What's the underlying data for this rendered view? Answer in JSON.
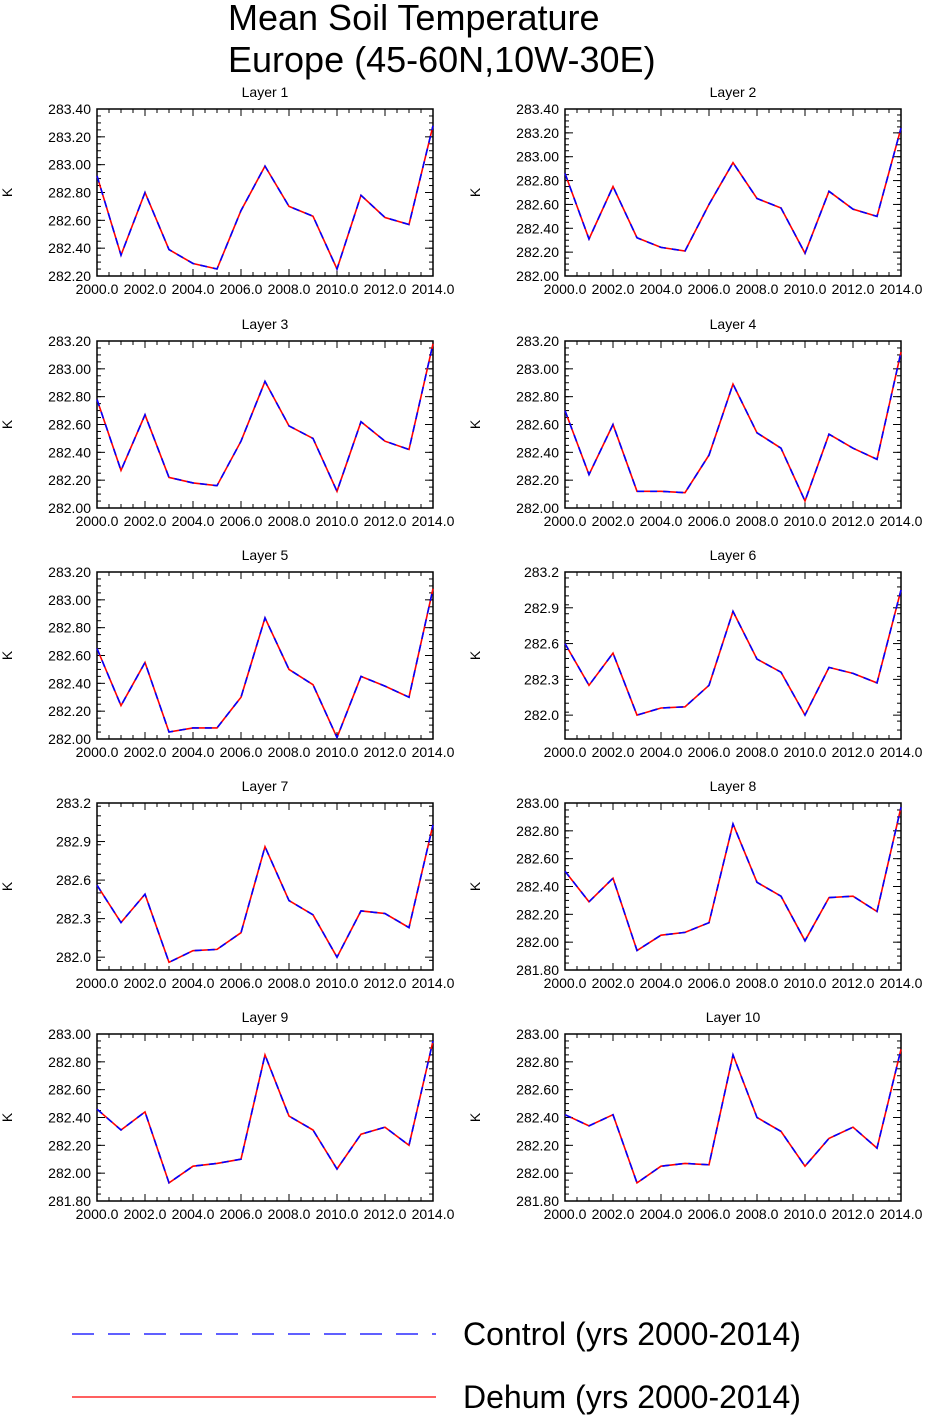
{
  "title_line1": "Mean Soil Temperature",
  "title_line2": "Europe (45-60N,10W-30E)",
  "colors": {
    "control": "#0000ff",
    "dehum": "#ff0000",
    "axis": "#000000"
  },
  "legend": [
    {
      "key": "control",
      "label": "Control (yrs 2000-2014)",
      "style": "dashed"
    },
    {
      "key": "dehum",
      "label": "Dehum (yrs 2000-2014)",
      "style": "solid"
    }
  ],
  "chart_data": [
    {
      "type": "line",
      "title": "Layer 1",
      "ylabel": "K",
      "x": [
        2000,
        2001,
        2002,
        2003,
        2004,
        2005,
        2006,
        2007,
        2008,
        2009,
        2010,
        2011,
        2012,
        2013,
        2014
      ],
      "xticks": [
        "2000.0",
        "2002.0",
        "2004.0",
        "2006.0",
        "2008.0",
        "2010.0",
        "2012.0",
        "2014.0"
      ],
      "xlim": [
        2000,
        2014
      ],
      "ylim": [
        282.2,
        283.4
      ],
      "yticks": [
        "282.20",
        "282.40",
        "282.60",
        "282.80",
        "283.00",
        "283.20",
        "283.40"
      ],
      "series": [
        {
          "name": "Control (yrs 2000-2014)",
          "values": [
            282.92,
            282.35,
            282.8,
            282.39,
            282.29,
            282.25,
            282.67,
            282.99,
            282.7,
            282.63,
            282.25,
            282.78,
            282.62,
            282.57,
            283.28
          ]
        },
        {
          "name": "Dehum (yrs 2000-2014)",
          "values": [
            282.92,
            282.35,
            282.8,
            282.39,
            282.29,
            282.25,
            282.67,
            282.99,
            282.7,
            282.63,
            282.25,
            282.78,
            282.62,
            282.57,
            283.28
          ]
        }
      ]
    },
    {
      "type": "line",
      "title": "Layer 2",
      "ylabel": "K",
      "x": [
        2000,
        2001,
        2002,
        2003,
        2004,
        2005,
        2006,
        2007,
        2008,
        2009,
        2010,
        2011,
        2012,
        2013,
        2014
      ],
      "xticks": [
        "2000.0",
        "2002.0",
        "2004.0",
        "2006.0",
        "2008.0",
        "2010.0",
        "2012.0",
        "2014.0"
      ],
      "xlim": [
        2000,
        2014
      ],
      "ylim": [
        282.0,
        283.4
      ],
      "yticks": [
        "282.00",
        "282.20",
        "282.40",
        "282.60",
        "282.80",
        "283.00",
        "283.20",
        "283.40"
      ],
      "series": [
        {
          "name": "Control (yrs 2000-2014)",
          "values": [
            282.86,
            282.31,
            282.75,
            282.32,
            282.24,
            282.21,
            282.6,
            282.95,
            282.65,
            282.57,
            282.19,
            282.71,
            282.56,
            282.5,
            283.24
          ]
        },
        {
          "name": "Dehum (yrs 2000-2014)",
          "values": [
            282.86,
            282.31,
            282.75,
            282.32,
            282.24,
            282.21,
            282.6,
            282.95,
            282.65,
            282.57,
            282.19,
            282.71,
            282.56,
            282.5,
            283.24
          ]
        }
      ]
    },
    {
      "type": "line",
      "title": "Layer 3",
      "ylabel": "K",
      "x": [
        2000,
        2001,
        2002,
        2003,
        2004,
        2005,
        2006,
        2007,
        2008,
        2009,
        2010,
        2011,
        2012,
        2013,
        2014
      ],
      "xticks": [
        "2000.0",
        "2002.0",
        "2004.0",
        "2006.0",
        "2008.0",
        "2010.0",
        "2012.0",
        "2014.0"
      ],
      "xlim": [
        2000,
        2014
      ],
      "ylim": [
        282.0,
        283.2
      ],
      "yticks": [
        "282.00",
        "282.20",
        "282.40",
        "282.60",
        "282.80",
        "283.00",
        "283.20"
      ],
      "series": [
        {
          "name": "Control (yrs 2000-2014)",
          "values": [
            282.78,
            282.27,
            282.67,
            282.22,
            282.18,
            282.16,
            282.48,
            282.91,
            282.59,
            282.5,
            282.12,
            282.62,
            282.48,
            282.42,
            283.18
          ]
        },
        {
          "name": "Dehum (yrs 2000-2014)",
          "values": [
            282.78,
            282.27,
            282.67,
            282.22,
            282.18,
            282.16,
            282.48,
            282.91,
            282.59,
            282.5,
            282.12,
            282.62,
            282.48,
            282.42,
            283.18
          ]
        }
      ]
    },
    {
      "type": "line",
      "title": "Layer 4",
      "ylabel": "K",
      "x": [
        2000,
        2001,
        2002,
        2003,
        2004,
        2005,
        2006,
        2007,
        2008,
        2009,
        2010,
        2011,
        2012,
        2013,
        2014
      ],
      "xticks": [
        "2000.0",
        "2002.0",
        "2004.0",
        "2006.0",
        "2008.0",
        "2010.0",
        "2012.0",
        "2014.0"
      ],
      "xlim": [
        2000,
        2014
      ],
      "ylim": [
        282.0,
        283.2
      ],
      "yticks": [
        "282.00",
        "282.20",
        "282.40",
        "282.60",
        "282.80",
        "283.00",
        "283.20"
      ],
      "series": [
        {
          "name": "Control (yrs 2000-2014)",
          "values": [
            282.7,
            282.24,
            282.6,
            282.12,
            282.12,
            282.11,
            282.38,
            282.89,
            282.54,
            282.43,
            282.05,
            282.53,
            282.43,
            282.35,
            283.12
          ]
        },
        {
          "name": "Dehum (yrs 2000-2014)",
          "values": [
            282.7,
            282.24,
            282.6,
            282.12,
            282.12,
            282.11,
            282.38,
            282.89,
            282.54,
            282.43,
            282.05,
            282.53,
            282.43,
            282.35,
            283.12
          ]
        }
      ]
    },
    {
      "type": "line",
      "title": "Layer 5",
      "ylabel": "K",
      "x": [
        2000,
        2001,
        2002,
        2003,
        2004,
        2005,
        2006,
        2007,
        2008,
        2009,
        2010,
        2011,
        2012,
        2013,
        2014
      ],
      "xticks": [
        "2000.0",
        "2002.0",
        "2004.0",
        "2006.0",
        "2008.0",
        "2010.0",
        "2012.0",
        "2014.0"
      ],
      "xlim": [
        2000,
        2014
      ],
      "ylim": [
        282.0,
        283.2
      ],
      "yticks": [
        "282.00",
        "282.20",
        "282.40",
        "282.60",
        "282.80",
        "283.00",
        "283.20"
      ],
      "series": [
        {
          "name": "Control (yrs 2000-2014)",
          "values": [
            282.65,
            282.24,
            282.55,
            282.05,
            282.08,
            282.08,
            282.3,
            282.87,
            282.5,
            282.39,
            282.01,
            282.45,
            282.38,
            282.3,
            283.08
          ]
        },
        {
          "name": "Dehum (yrs 2000-2014)",
          "values": [
            282.65,
            282.24,
            282.55,
            282.05,
            282.08,
            282.08,
            282.3,
            282.87,
            282.5,
            282.39,
            282.01,
            282.45,
            282.38,
            282.3,
            283.08
          ]
        }
      ]
    },
    {
      "type": "line",
      "title": "Layer 6",
      "ylabel": "K",
      "x": [
        2000,
        2001,
        2002,
        2003,
        2004,
        2005,
        2006,
        2007,
        2008,
        2009,
        2010,
        2011,
        2012,
        2013,
        2014
      ],
      "xticks": [
        "2000.0",
        "2002.0",
        "2004.0",
        "2006.0",
        "2008.0",
        "2010.0",
        "2012.0",
        "2014.0"
      ],
      "xlim": [
        2000,
        2014
      ],
      "ylim": [
        281.8,
        283.2
      ],
      "yticks": [
        "282.0",
        "282.3",
        "282.6",
        "282.9",
        "283.2"
      ],
      "series": [
        {
          "name": "Control (yrs 2000-2014)",
          "values": [
            282.6,
            282.25,
            282.52,
            282.0,
            282.06,
            282.07,
            282.25,
            282.87,
            282.47,
            282.36,
            282.0,
            282.4,
            282.35,
            282.27,
            283.05
          ]
        },
        {
          "name": "Dehum (yrs 2000-2014)",
          "values": [
            282.6,
            282.25,
            282.52,
            282.0,
            282.06,
            282.07,
            282.25,
            282.87,
            282.47,
            282.36,
            282.0,
            282.4,
            282.35,
            282.27,
            283.05
          ]
        }
      ]
    },
    {
      "type": "line",
      "title": "Layer 7",
      "ylabel": "K",
      "x": [
        2000,
        2001,
        2002,
        2003,
        2004,
        2005,
        2006,
        2007,
        2008,
        2009,
        2010,
        2011,
        2012,
        2013,
        2014
      ],
      "xticks": [
        "2000.0",
        "2002.0",
        "2004.0",
        "2006.0",
        "2008.0",
        "2010.0",
        "2012.0",
        "2014.0"
      ],
      "xlim": [
        2000,
        2014
      ],
      "ylim": [
        281.9,
        283.2
      ],
      "yticks": [
        "282.0",
        "282.3",
        "282.6",
        "282.9",
        "283.2"
      ],
      "series": [
        {
          "name": "Control (yrs 2000-2014)",
          "values": [
            282.56,
            282.27,
            282.49,
            281.96,
            282.05,
            282.06,
            282.19,
            282.86,
            282.44,
            282.33,
            282.0,
            282.36,
            282.34,
            282.23,
            283.03
          ]
        },
        {
          "name": "Dehum (yrs 2000-2014)",
          "values": [
            282.56,
            282.27,
            282.49,
            281.96,
            282.05,
            282.06,
            282.19,
            282.86,
            282.44,
            282.33,
            282.0,
            282.36,
            282.34,
            282.23,
            283.03
          ]
        }
      ]
    },
    {
      "type": "line",
      "title": "Layer 8",
      "ylabel": "K",
      "x": [
        2000,
        2001,
        2002,
        2003,
        2004,
        2005,
        2006,
        2007,
        2008,
        2009,
        2010,
        2011,
        2012,
        2013,
        2014
      ],
      "xticks": [
        "2000.0",
        "2002.0",
        "2004.0",
        "2006.0",
        "2008.0",
        "2010.0",
        "2012.0",
        "2014.0"
      ],
      "xlim": [
        2000,
        2014
      ],
      "ylim": [
        281.8,
        283.0
      ],
      "yticks": [
        "281.80",
        "282.00",
        "282.20",
        "282.40",
        "282.60",
        "282.80",
        "283.00"
      ],
      "series": [
        {
          "name": "Control (yrs 2000-2014)",
          "values": [
            282.51,
            282.29,
            282.46,
            281.94,
            282.05,
            282.07,
            282.14,
            282.85,
            282.43,
            282.33,
            282.01,
            282.32,
            282.33,
            282.22,
            282.97
          ]
        },
        {
          "name": "Dehum (yrs 2000-2014)",
          "values": [
            282.51,
            282.29,
            282.46,
            281.94,
            282.05,
            282.07,
            282.14,
            282.85,
            282.43,
            282.33,
            282.01,
            282.32,
            282.33,
            282.22,
            282.97
          ]
        }
      ]
    },
    {
      "type": "line",
      "title": "Layer 9",
      "ylabel": "K",
      "x": [
        2000,
        2001,
        2002,
        2003,
        2004,
        2005,
        2006,
        2007,
        2008,
        2009,
        2010,
        2011,
        2012,
        2013,
        2014
      ],
      "xticks": [
        "2000.0",
        "2002.0",
        "2004.0",
        "2006.0",
        "2008.0",
        "2010.0",
        "2012.0",
        "2014.0"
      ],
      "xlim": [
        2000,
        2014
      ],
      "ylim": [
        281.8,
        283.0
      ],
      "yticks": [
        "281.80",
        "282.00",
        "282.20",
        "282.40",
        "282.60",
        "282.80",
        "283.00"
      ],
      "series": [
        {
          "name": "Control (yrs 2000-2014)",
          "values": [
            282.46,
            282.31,
            282.44,
            281.93,
            282.05,
            282.07,
            282.1,
            282.85,
            282.41,
            282.31,
            282.03,
            282.28,
            282.33,
            282.2,
            282.95
          ]
        },
        {
          "name": "Dehum (yrs 2000-2014)",
          "values": [
            282.46,
            282.31,
            282.44,
            281.93,
            282.05,
            282.07,
            282.1,
            282.85,
            282.41,
            282.31,
            282.03,
            282.28,
            282.33,
            282.2,
            282.95
          ]
        }
      ]
    },
    {
      "type": "line",
      "title": "Layer 10",
      "ylabel": "K",
      "x": [
        2000,
        2001,
        2002,
        2003,
        2004,
        2005,
        2006,
        2007,
        2008,
        2009,
        2010,
        2011,
        2012,
        2013,
        2014
      ],
      "xticks": [
        "2000.0",
        "2002.0",
        "2004.0",
        "2006.0",
        "2008.0",
        "2010.0",
        "2012.0",
        "2014.0"
      ],
      "xlim": [
        2000,
        2014
      ],
      "ylim": [
        281.8,
        283.0
      ],
      "yticks": [
        "281.80",
        "282.00",
        "282.20",
        "282.40",
        "282.60",
        "282.80",
        "283.00"
      ],
      "series": [
        {
          "name": "Control (yrs 2000-2014)",
          "values": [
            282.42,
            282.34,
            282.42,
            281.93,
            282.05,
            282.07,
            282.06,
            282.85,
            282.4,
            282.3,
            282.05,
            282.25,
            282.33,
            282.18,
            282.89
          ]
        },
        {
          "name": "Dehum (yrs 2000-2014)",
          "values": [
            282.42,
            282.34,
            282.42,
            281.93,
            282.05,
            282.07,
            282.06,
            282.85,
            282.4,
            282.3,
            282.05,
            282.25,
            282.33,
            282.18,
            282.89
          ]
        }
      ]
    }
  ]
}
